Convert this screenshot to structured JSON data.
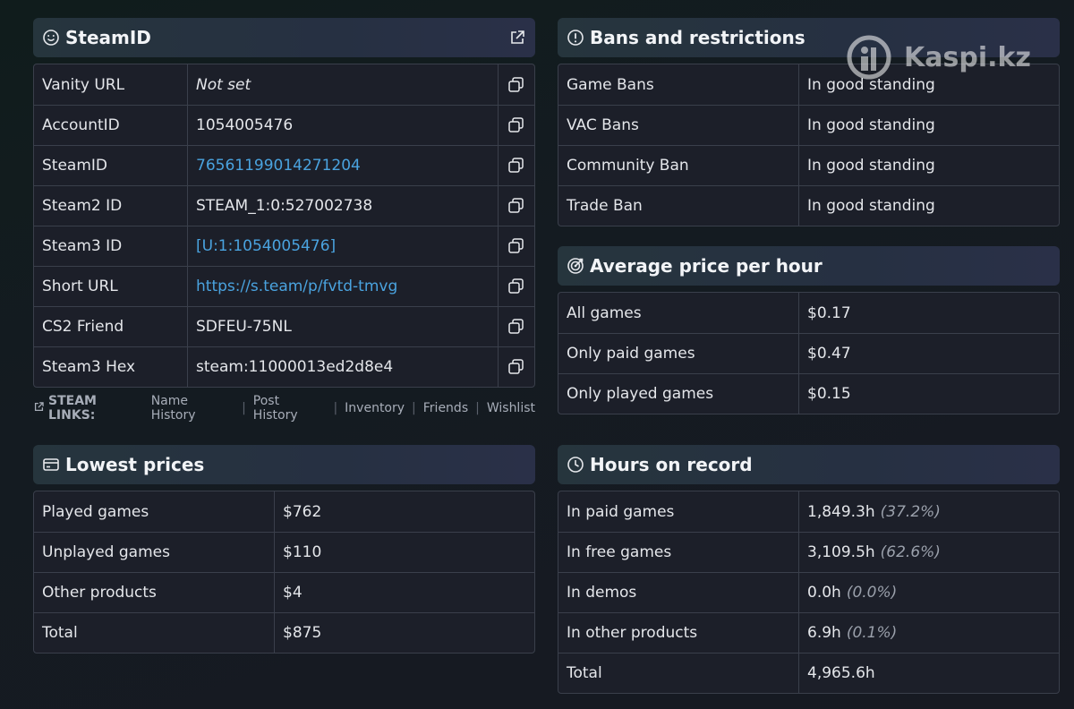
{
  "steamid": {
    "title": "SteamID",
    "rows": [
      {
        "label": "Vanity URL",
        "value": "Not set"
      },
      {
        "label": "AccountID",
        "value": "1054005476"
      },
      {
        "label": "SteamID",
        "value": "76561199014271204"
      },
      {
        "label": "Steam2 ID",
        "value": "STEAM_1:0:527002738"
      },
      {
        "label": "Steam3 ID",
        "value": "[U:1:1054005476]"
      },
      {
        "label": "Short URL",
        "value": "https://s.team/p/fvtd-tmvg"
      },
      {
        "label": "CS2 Friend",
        "value": "SDFEU-75NL"
      },
      {
        "label": "Steam3 Hex",
        "value": "steam:11000013ed2d8e4"
      }
    ],
    "links_label": "STEAM LINKS:",
    "links": [
      "Name History",
      "Post History",
      "Inventory",
      "Friends",
      "Wishlist"
    ]
  },
  "bans": {
    "title": "Bans and restrictions",
    "rows": [
      {
        "label": "Game Bans",
        "value": "In good standing"
      },
      {
        "label": "VAC Bans",
        "value": "In good standing"
      },
      {
        "label": "Community Ban",
        "value": "In good standing"
      },
      {
        "label": "Trade Ban",
        "value": "In good standing"
      }
    ]
  },
  "avg_price": {
    "title": "Average price per hour",
    "rows": [
      {
        "label": "All games",
        "value": "$0.17"
      },
      {
        "label": "Only paid games",
        "value": "$0.47"
      },
      {
        "label": "Only played games",
        "value": "$0.15"
      }
    ]
  },
  "lowest": {
    "title": "Lowest prices",
    "rows": [
      {
        "label": "Played games",
        "value": "$762"
      },
      {
        "label": "Unplayed games",
        "value": "$110"
      },
      {
        "label": "Other products",
        "value": "$4"
      },
      {
        "label": "Total",
        "value": "$875"
      }
    ]
  },
  "hours": {
    "title": "Hours on record",
    "rows": [
      {
        "label": "In paid games",
        "value": "1,849.3h",
        "pct": "(37.2%)"
      },
      {
        "label": "In free games",
        "value": "3,109.5h",
        "pct": "(62.6%)"
      },
      {
        "label": "In demos",
        "value": "0.0h",
        "pct": "(0.0%)"
      },
      {
        "label": "In other products",
        "value": "6.9h",
        "pct": "(0.1%)"
      },
      {
        "label": "Total",
        "value": "4,965.6h",
        "pct": ""
      }
    ]
  },
  "watermark": "Kaspi.kz",
  "colors": {
    "link": "#4aa3df",
    "header_bg": "#263042",
    "table_bg": "#1c1f29"
  }
}
